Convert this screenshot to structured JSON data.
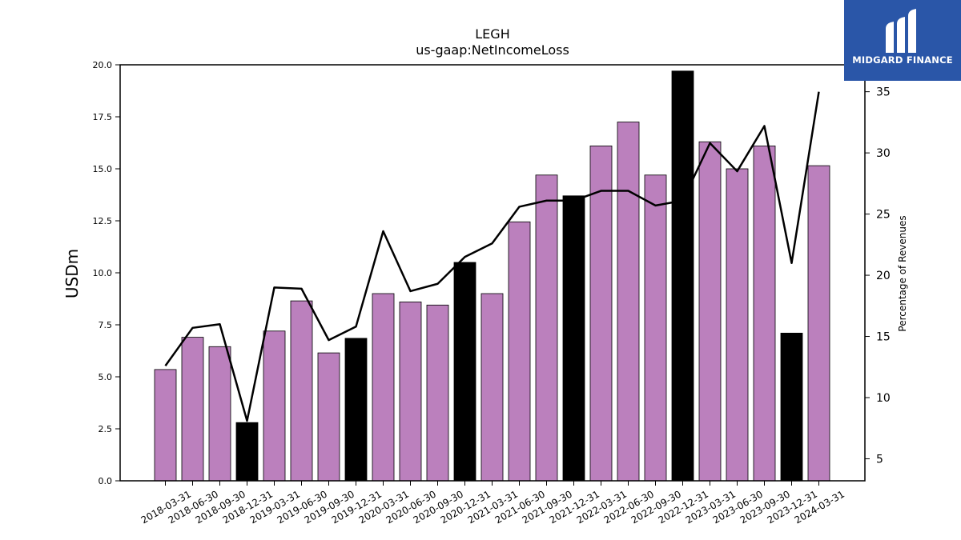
{
  "chart_data": {
    "type": "bar",
    "title": "LEGH",
    "subtitle": "us-gaap:NetIncomeLoss",
    "ylabel": "USDm",
    "y2label": "Percentage of Revenues",
    "ylim": [
      0,
      20
    ],
    "y2lim": [
      3.2,
      37.2
    ],
    "yticks": [
      "0.0",
      "2.5",
      "5.0",
      "7.5",
      "10.0",
      "12.5",
      "15.0",
      "17.5",
      "20.0"
    ],
    "y2ticks": [
      "5",
      "10",
      "15",
      "20",
      "25",
      "30",
      "35"
    ],
    "categories": [
      "2018-03-31",
      "2018-06-30",
      "2018-09-30",
      "2018-12-31",
      "2019-03-31",
      "2019-06-30",
      "2019-09-30",
      "2019-12-31",
      "2020-03-31",
      "2020-06-30",
      "2020-09-30",
      "2020-12-31",
      "2021-03-31",
      "2021-06-30",
      "2021-09-30",
      "2021-12-31",
      "2022-03-31",
      "2022-06-30",
      "2022-09-30",
      "2022-12-31",
      "2023-03-31",
      "2023-06-30",
      "2023-09-30",
      "2023-12-31",
      "2024-03-31"
    ],
    "series": [
      {
        "type": "bar",
        "values": [
          5.35,
          6.9,
          6.45,
          2.8,
          7.2,
          8.65,
          6.15,
          6.85,
          9.0,
          8.6,
          8.45,
          10.5,
          9.0,
          12.45,
          14.7,
          13.7,
          16.1,
          17.25,
          14.7,
          19.7,
          16.3,
          15.0,
          16.1,
          7.1,
          15.15
        ],
        "colors": [
          "#bb80bd",
          "#bb80bd",
          "#bb80bd",
          "#000000",
          "#bb80bd",
          "#bb80bd",
          "#bb80bd",
          "#000000",
          "#bb80bd",
          "#bb80bd",
          "#bb80bd",
          "#000000",
          "#bb80bd",
          "#bb80bd",
          "#bb80bd",
          "#000000",
          "#bb80bd",
          "#bb80bd",
          "#bb80bd",
          "#000000",
          "#bb80bd",
          "#bb80bd",
          "#bb80bd",
          "#000000",
          "#bb80bd"
        ]
      },
      {
        "type": "line",
        "axis": "right",
        "color": "#000000",
        "values": [
          12.6,
          15.7,
          16.0,
          8.1,
          19.0,
          18.9,
          14.7,
          15.8,
          23.6,
          18.7,
          19.3,
          21.5,
          22.6,
          25.6,
          26.1,
          26.1,
          26.9,
          26.9,
          25.7,
          26.1,
          30.8,
          28.5,
          32.2,
          21.0,
          35.0
        ]
      }
    ],
    "legend": "none",
    "grid": false
  },
  "brand": {
    "name": "MIDGARD FINANCE",
    "color": "#2a56a8",
    "icon": "midgard-logo-icon"
  }
}
